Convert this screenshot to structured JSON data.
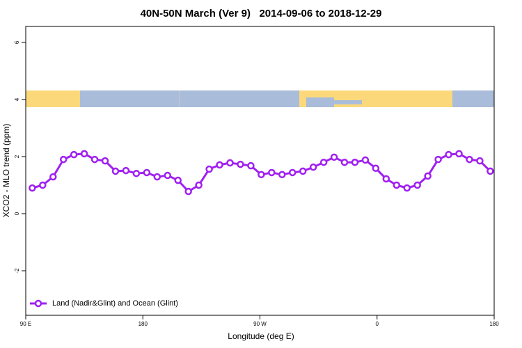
{
  "chart_data": {
    "type": "line",
    "title": "40N-50N March (Ver 9)   2014-09-06 to 2018-12-29",
    "x_label": "Longitude (deg E)",
    "y_label": "XCO2 - MLO trend (ppm)",
    "x": [
      95,
      103,
      111,
      119,
      127,
      135,
      143,
      151,
      159,
      167,
      175,
      183,
      191,
      199,
      207,
      215,
      223,
      231,
      239,
      247,
      255,
      263,
      271,
      279,
      287,
      295,
      303,
      311,
      319,
      327,
      335,
      343,
      351,
      359,
      367,
      375,
      383,
      391,
      399,
      407,
      415,
      423,
      431,
      439,
      447
    ],
    "series": [
      {
        "name": "Land (Nadir&Glint) and Ocean (Glint)",
        "color": "#a020f0",
        "values": [
          0.9,
          1.0,
          1.29,
          1.9,
          2.07,
          2.1,
          1.9,
          1.85,
          1.49,
          1.51,
          1.41,
          1.44,
          1.29,
          1.34,
          1.17,
          0.78,
          1.0,
          1.56,
          1.71,
          1.78,
          1.73,
          1.68,
          1.37,
          1.44,
          1.37,
          1.44,
          1.49,
          1.63,
          1.8,
          1.98,
          1.8,
          1.8,
          1.88,
          1.59,
          1.22,
          1.0,
          0.9,
          1.0,
          1.32,
          1.9,
          2.07,
          2.1,
          1.9,
          1.85,
          1.49
        ]
      }
    ],
    "xlim": [
      90,
      450
    ],
    "ylim": [
      -3.56,
      6.56
    ],
    "xticks": [
      {
        "value": 90,
        "label": "90 E"
      },
      180,
      {
        "value": 270,
        "label": "90 W"
      },
      {
        "value": 360,
        "label": "0"
      },
      {
        "value": 450,
        "label": "180"
      }
    ],
    "yticks": [
      -2,
      0,
      2,
      4,
      6
    ],
    "legend": "bottom-left"
  }
}
